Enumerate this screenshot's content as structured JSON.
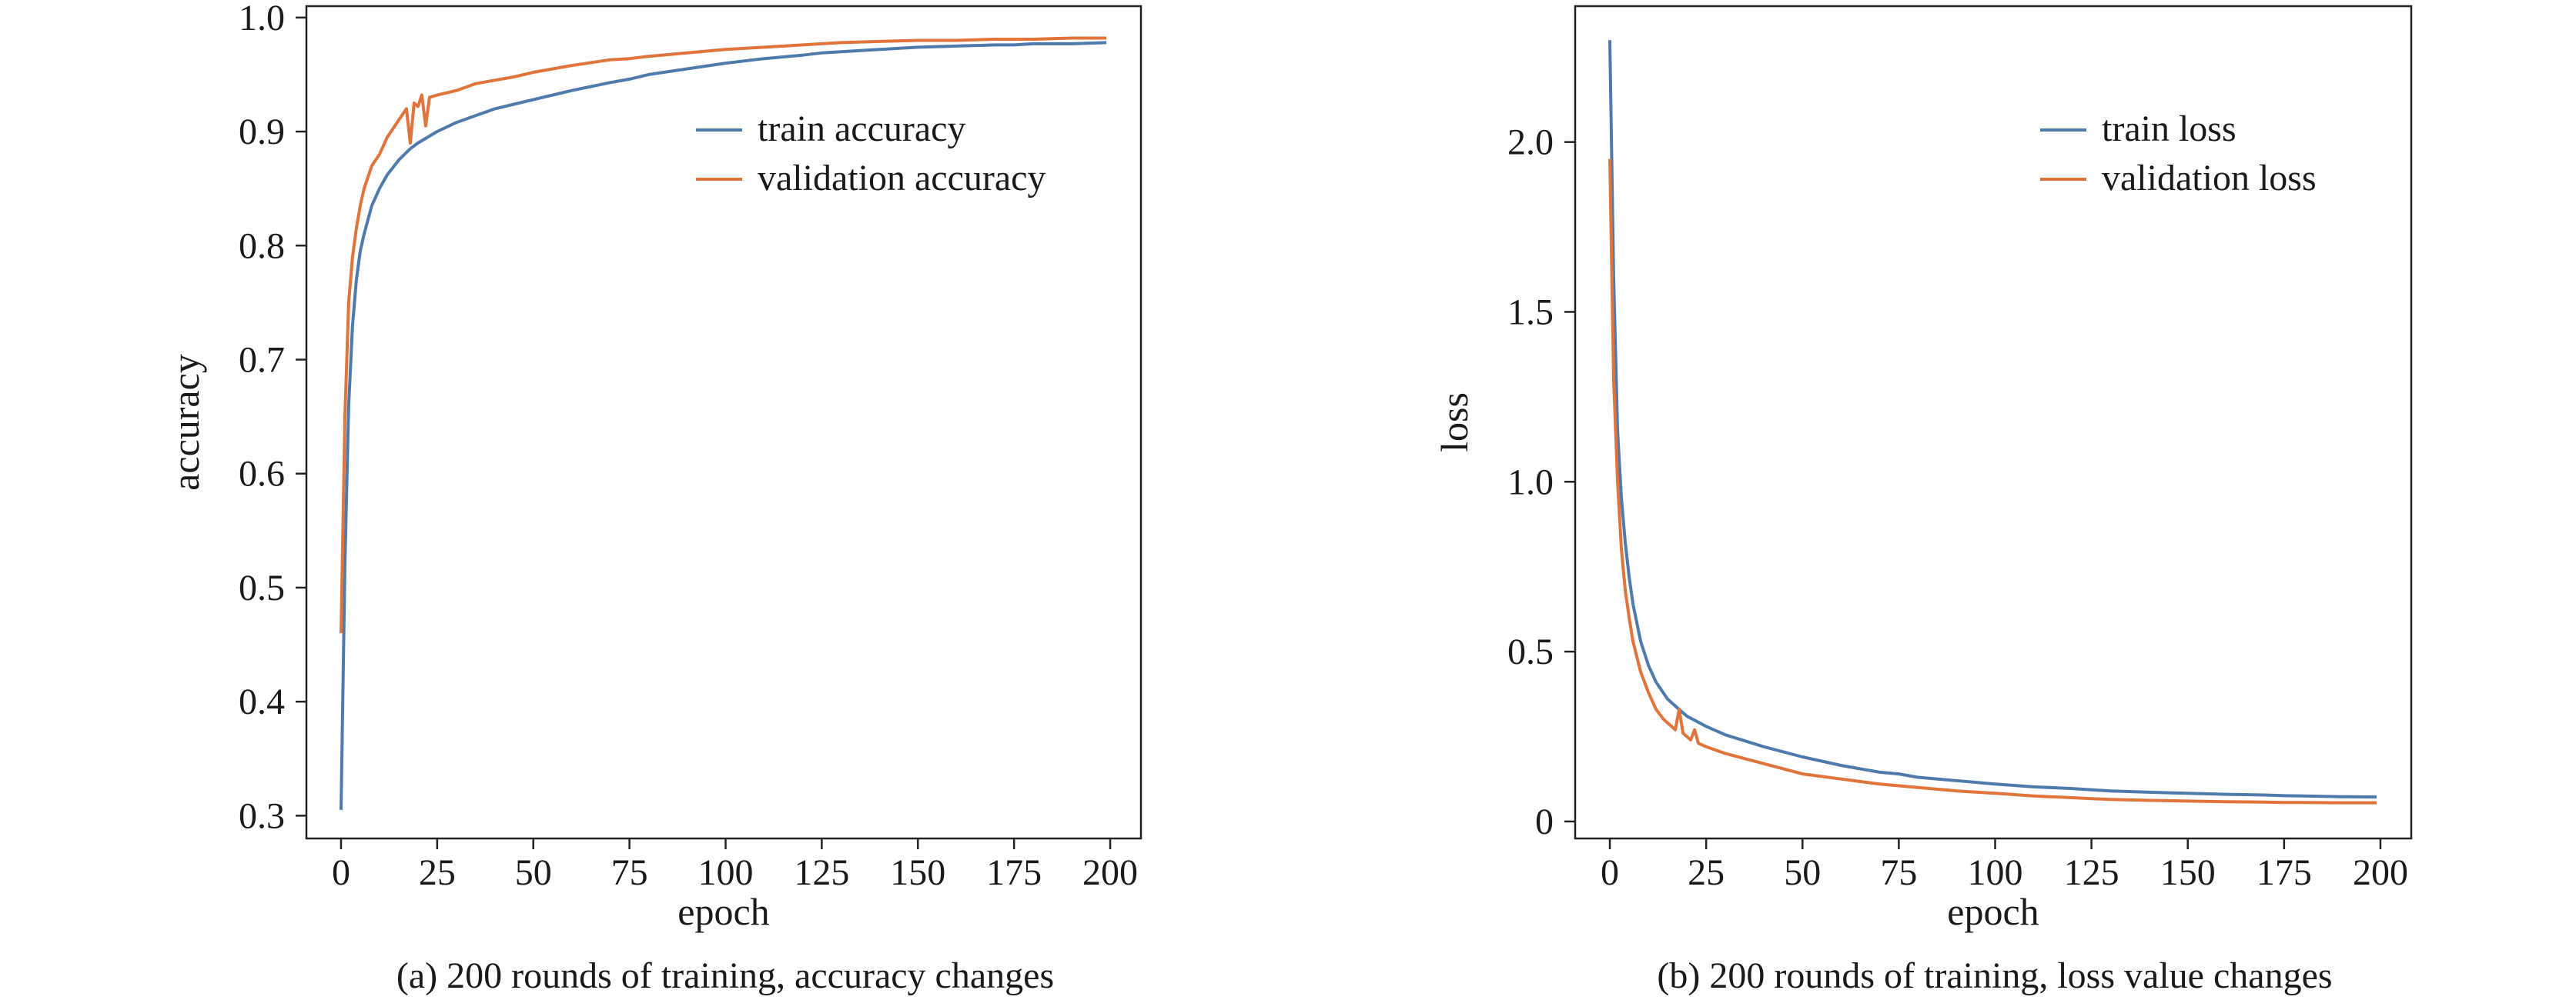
{
  "chart_data": [
    {
      "type": "line",
      "caption": "(a) 200 rounds of training, accuracy changes",
      "xlabel": "epoch",
      "ylabel": "accuracy",
      "xlim": [
        -9,
        208
      ],
      "ylim": [
        0.28,
        1.01
      ],
      "xticks": [
        0,
        25,
        50,
        75,
        100,
        125,
        150,
        175,
        200
      ],
      "yticks": [
        0.3,
        0.4,
        0.5,
        0.6,
        0.7,
        0.8,
        0.9,
        1.0
      ],
      "xtick_labels": [
        "0",
        "25",
        "50",
        "75",
        "100",
        "125",
        "150",
        "175",
        "200"
      ],
      "ytick_labels": [
        "0.3",
        "0.4",
        "0.5",
        "0.6",
        "0.7",
        "0.8",
        "0.9",
        "1.0"
      ],
      "legend_position": "upper-right",
      "series": [
        {
          "name": "train accuracy",
          "color": "#4f7bac",
          "x": [
            0,
            1,
            2,
            3,
            4,
            5,
            6,
            8,
            10,
            12,
            15,
            18,
            20,
            25,
            30,
            35,
            40,
            50,
            60,
            70,
            75,
            80,
            90,
            100,
            110,
            120,
            125,
            130,
            140,
            150,
            160,
            170,
            175,
            180,
            190,
            199
          ],
          "y": [
            0.305,
            0.52,
            0.66,
            0.73,
            0.77,
            0.795,
            0.81,
            0.835,
            0.85,
            0.862,
            0.875,
            0.885,
            0.89,
            0.9,
            0.908,
            0.914,
            0.92,
            0.928,
            0.936,
            0.943,
            0.946,
            0.95,
            0.955,
            0.96,
            0.964,
            0.967,
            0.969,
            0.97,
            0.972,
            0.974,
            0.975,
            0.976,
            0.976,
            0.977,
            0.977,
            0.978
          ]
        },
        {
          "name": "validation accuracy",
          "color": "#e0743a",
          "x": [
            0,
            1,
            2,
            3,
            4,
            5,
            6,
            8,
            10,
            12,
            14,
            16,
            17,
            18,
            19,
            20,
            21,
            22,
            23,
            25,
            30,
            35,
            40,
            45,
            50,
            60,
            70,
            75,
            80,
            90,
            100,
            110,
            120,
            125,
            130,
            140,
            150,
            160,
            170,
            175,
            180,
            190,
            199
          ],
          "y": [
            0.46,
            0.65,
            0.75,
            0.79,
            0.815,
            0.835,
            0.85,
            0.87,
            0.88,
            0.895,
            0.905,
            0.915,
            0.92,
            0.89,
            0.925,
            0.922,
            0.932,
            0.905,
            0.93,
            0.932,
            0.936,
            0.942,
            0.945,
            0.948,
            0.952,
            0.958,
            0.963,
            0.964,
            0.966,
            0.969,
            0.972,
            0.974,
            0.976,
            0.977,
            0.978,
            0.979,
            0.98,
            0.98,
            0.981,
            0.981,
            0.981,
            0.982,
            0.982
          ]
        }
      ]
    },
    {
      "type": "line",
      "caption": "(b) 200 rounds of training, loss value changes",
      "xlabel": "epoch",
      "ylabel": "loss",
      "xlim": [
        -9,
        208
      ],
      "ylim": [
        -0.05,
        2.4
      ],
      "xticks": [
        0,
        25,
        50,
        75,
        100,
        125,
        150,
        175,
        200
      ],
      "yticks": [
        0,
        0.5,
        1.0,
        1.5,
        2.0
      ],
      "xtick_labels": [
        "0",
        "25",
        "50",
        "75",
        "100",
        "125",
        "150",
        "175",
        "200"
      ],
      "ytick_labels": [
        "0",
        "0.5",
        "1.0",
        "1.5",
        "2.0"
      ],
      "legend_position": "upper-right",
      "series": [
        {
          "name": "train loss",
          "color": "#4f7bac",
          "x": [
            0,
            1,
            2,
            3,
            4,
            5,
            6,
            8,
            10,
            12,
            15,
            18,
            20,
            25,
            30,
            40,
            50,
            60,
            70,
            75,
            80,
            90,
            100,
            110,
            120,
            125,
            130,
            140,
            150,
            160,
            170,
            175,
            180,
            190,
            199
          ],
          "y": [
            2.3,
            1.6,
            1.15,
            0.95,
            0.82,
            0.72,
            0.64,
            0.53,
            0.46,
            0.41,
            0.36,
            0.33,
            0.31,
            0.28,
            0.255,
            0.22,
            0.19,
            0.165,
            0.145,
            0.14,
            0.13,
            0.12,
            0.11,
            0.102,
            0.097,
            0.093,
            0.09,
            0.086,
            0.083,
            0.08,
            0.078,
            0.076,
            0.075,
            0.073,
            0.072
          ]
        },
        {
          "name": "validation loss",
          "color": "#e0743a",
          "x": [
            0,
            1,
            2,
            3,
            4,
            5,
            6,
            8,
            10,
            12,
            14,
            16,
            17,
            18,
            19,
            20,
            21,
            22,
            23,
            25,
            30,
            40,
            50,
            60,
            70,
            75,
            80,
            90,
            100,
            110,
            120,
            125,
            130,
            140,
            150,
            160,
            170,
            175,
            180,
            190,
            199
          ],
          "y": [
            1.95,
            1.3,
            1.0,
            0.8,
            0.68,
            0.6,
            0.53,
            0.44,
            0.38,
            0.33,
            0.3,
            0.28,
            0.27,
            0.33,
            0.26,
            0.25,
            0.24,
            0.27,
            0.23,
            0.22,
            0.2,
            0.17,
            0.14,
            0.125,
            0.11,
            0.105,
            0.1,
            0.09,
            0.083,
            0.075,
            0.07,
            0.067,
            0.065,
            0.062,
            0.06,
            0.058,
            0.057,
            0.056,
            0.056,
            0.055,
            0.055
          ]
        }
      ]
    }
  ]
}
